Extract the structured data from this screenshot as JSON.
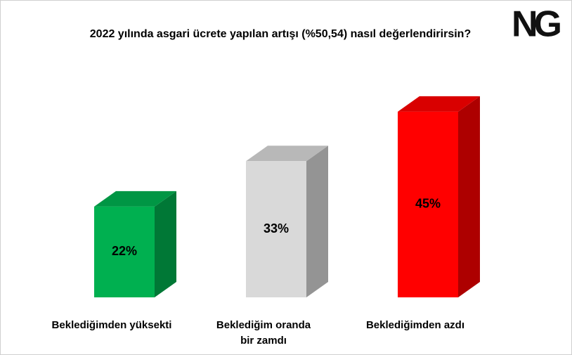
{
  "chart_data": {
    "type": "bar3d",
    "title": "2022 yılında asgari ücrete yapılan artışı (%50,54) nasıl değerlendirirsin?",
    "logo": "NG",
    "categories": [
      "Beklediğimden yüksekti",
      "Beklediğim oranda bir zamdı",
      "Beklediğimden azdı"
    ],
    "values": [
      22,
      33,
      45
    ],
    "value_labels": [
      "22%",
      "33%",
      "45%"
    ],
    "colors": [
      "#00b050",
      "#d9d9d9",
      "#ff0000"
    ]
  }
}
